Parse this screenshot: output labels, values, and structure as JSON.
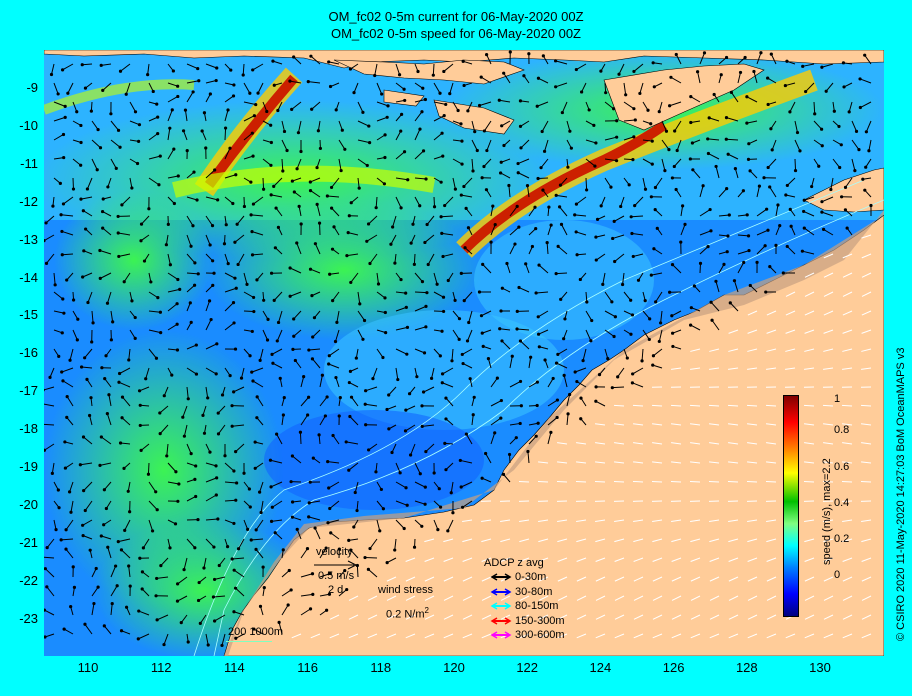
{
  "title": [
    "OM_fc02 0-5m current for 06-May-2020 00Z",
    "OM_fc02 0-5m speed for 06-May-2020 00Z"
  ],
  "lat_ticks": [
    "-9",
    "-10",
    "-11",
    "-12",
    "-13",
    "-14",
    "-15",
    "-16",
    "-17",
    "-18",
    "-19",
    "-20",
    "-21",
    "-22",
    "-23"
  ],
  "lon_ticks": [
    "110",
    "112",
    "114",
    "116",
    "118",
    "120",
    "122",
    "124",
    "126",
    "128",
    "130"
  ],
  "colorbar": {
    "label": "speed (m/s), max=2.2",
    "ticks": [
      "1",
      "0.8",
      "0.6",
      "0.4",
      "0.2",
      "0"
    ],
    "colors": [
      "#000080",
      "#0000ff",
      "#0080ff",
      "#00ffff",
      "#80ff80",
      "#00c000",
      "#ffff00",
      "#ff8000",
      "#ff0000",
      "#800000"
    ]
  },
  "velocity_legend": {
    "title": "velocity",
    "speed": "0.5 m/s",
    "duration": "2 d"
  },
  "wind_legend": {
    "title": "wind stress",
    "value": "0.2 N/m",
    "superscript": "2"
  },
  "adcp_legend": {
    "title": "ADCP z avg",
    "entries": [
      {
        "label": "0-30m",
        "color": "#000000"
      },
      {
        "label": "30-80m",
        "color": "#0000ff"
      },
      {
        "label": "80-150m",
        "color": "#00ffff"
      },
      {
        "label": "150-300m",
        "color": "#ff0000"
      },
      {
        "label": "300-600m",
        "color": "#ff00ff"
      }
    ]
  },
  "isobaths": "200  1000m",
  "credit": "© CSIRO 2020    11-May-2020 14:27:03 BoM OceanMAPS v3",
  "colors": {
    "land": "#ffcc99",
    "shelf": "#c8a080",
    "ocean_low": "#0064ff",
    "ocean_mid": "#28c8ff"
  }
}
